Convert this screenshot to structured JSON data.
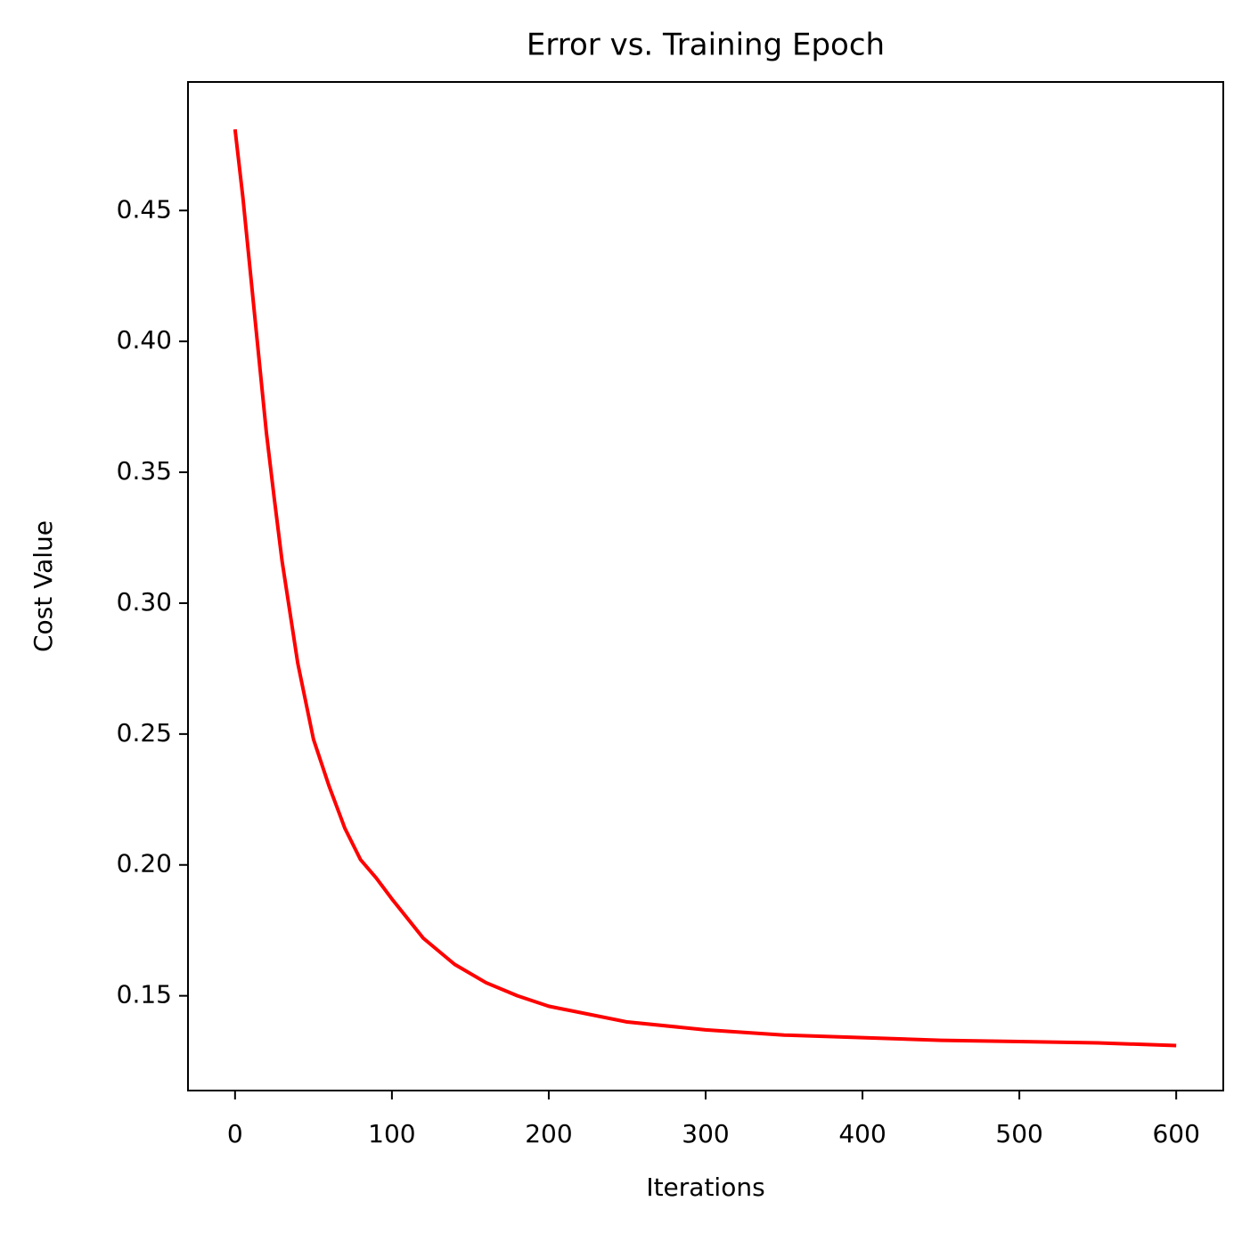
{
  "chart_data": {
    "type": "line",
    "title": "Error vs. Training Epoch",
    "x_label": "Iterations",
    "y_label": "Cost Value",
    "x": [
      0,
      5,
      10,
      15,
      20,
      25,
      30,
      40,
      50,
      60,
      70,
      80,
      90,
      100,
      120,
      140,
      160,
      180,
      200,
      250,
      300,
      350,
      400,
      450,
      500,
      550,
      600
    ],
    "series": [
      {
        "color": "#ff0000",
        "values": [
          0.481,
          0.455,
          0.425,
          0.395,
          0.365,
          0.34,
          0.316,
          0.277,
          0.248,
          0.23,
          0.214,
          0.202,
          0.195,
          0.187,
          0.172,
          0.162,
          0.155,
          0.15,
          0.146,
          0.14,
          0.137,
          0.135,
          0.134,
          0.133,
          0.1325,
          0.132,
          0.131
        ]
      }
    ],
    "xlim": [
      -30,
      630
    ],
    "ylim": [
      0.1138,
      0.4991
    ],
    "xticks": [
      0,
      100,
      200,
      300,
      400,
      500,
      600
    ],
    "yticks": [
      0.15,
      {
        "value": 0.2,
        "label": "0.20"
      },
      0.25,
      {
        "value": 0.3,
        "label": "0.30"
      },
      0.35,
      {
        "value": 0.4,
        "label": "0.40"
      },
      0.45
    ],
    "grid": false
  }
}
